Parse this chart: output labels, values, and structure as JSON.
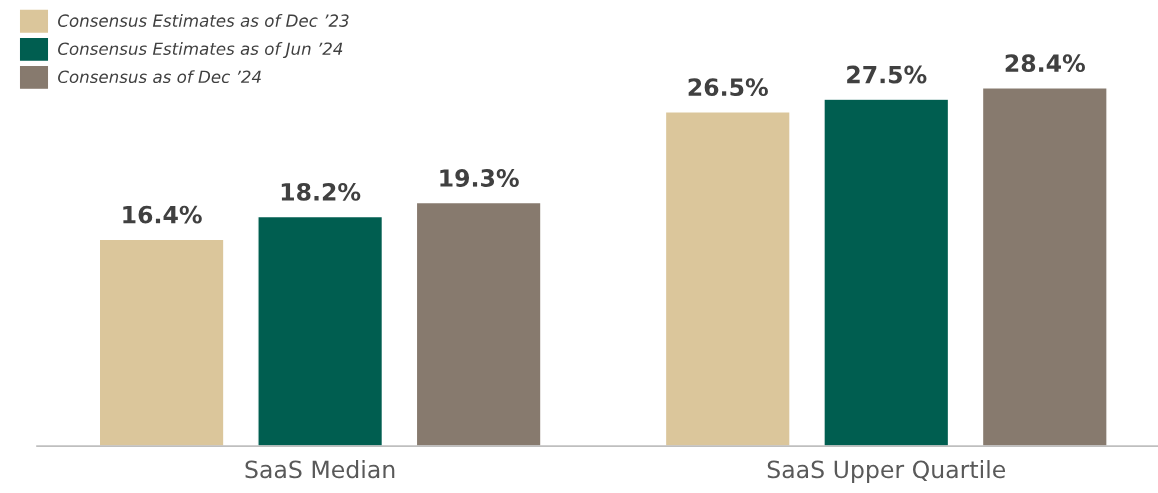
{
  "chart_data": {
    "type": "bar",
    "categories": [
      "SaaS Median",
      "SaaS Upper Quartile"
    ],
    "series": [
      {
        "name": "Consensus Estimates as of Dec ’23",
        "color": "#dbc69b",
        "values": [
          16.4,
          26.5
        ],
        "value_labels": [
          "16.4%",
          "26.5%"
        ]
      },
      {
        "name": "Consensus Estimates as of Jun ’24",
        "color": "#005e50",
        "values": [
          18.2,
          27.5
        ],
        "value_labels": [
          "18.2%",
          "27.5%"
        ]
      },
      {
        "name": "Consensus as of Dec ’24",
        "color": "#877a6e",
        "values": [
          19.3,
          28.4
        ],
        "value_labels": [
          "19.3%",
          "28.4%"
        ]
      }
    ],
    "legend": "top left",
    "grid": false,
    "tick_labels": "x"
  }
}
